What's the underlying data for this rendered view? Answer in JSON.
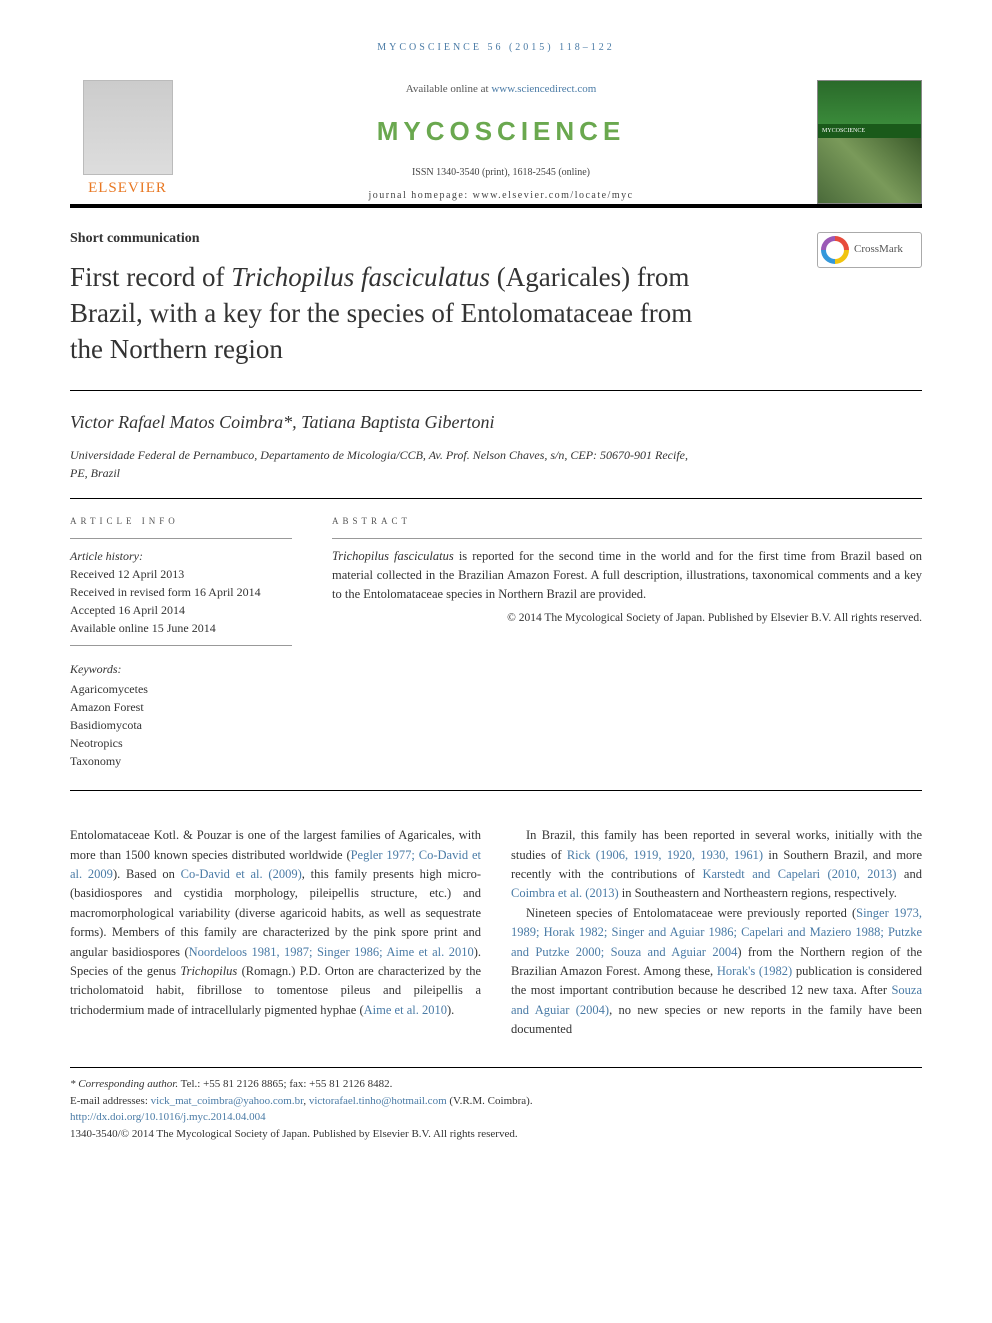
{
  "running_header": "MYCOSCIENCE 56 (2015) 118–122",
  "masthead": {
    "available_prefix": "Available online at ",
    "available_link": "www.sciencedirect.com",
    "journal_logo_text": "MYCOSCIENCE",
    "issn_line": "ISSN 1340-3540 (print), 1618-2545 (online)",
    "homepage_line": "journal homepage: www.elsevier.com/locate/myc",
    "publisher_name": "ELSEVIER",
    "cover_band": "MYCOSCIENCE"
  },
  "section_label": "Short communication",
  "title_pre": "First record of ",
  "title_em": "Trichopilus fasciculatus",
  "title_post": " (Agaricales) from Brazil, with a key for the species of Entolomataceae from the Northern region",
  "crossmark_label": "CrossMark",
  "authors_line": "Victor Rafael Matos Coimbra*, Tatiana Baptista Gibertoni",
  "affiliation": "Universidade Federal de Pernambuco, Departamento de Micologia/CCB, Av. Prof. Nelson Chaves, s/n, CEP: 50670-901 Recife, PE, Brazil",
  "article_info_heading": "ARTICLE INFO",
  "abstract_heading": "ABSTRACT",
  "history": {
    "label": "Article history:",
    "received": "Received 12 April 2013",
    "revised": "Received in revised form 16 April 2014",
    "accepted": "Accepted 16 April 2014",
    "online": "Available online 15 June 2014"
  },
  "keywords": {
    "label": "Keywords:",
    "items": [
      "Agaricomycetes",
      "Amazon Forest",
      "Basidiomycota",
      "Neotropics",
      "Taxonomy"
    ]
  },
  "abstract_em": "Trichopilus fasciculatus",
  "abstract_rest": " is reported for the second time in the world and for the first time from Brazil based on material collected in the Brazilian Amazon Forest. A full description, illustrations, taxonomical comments and a key to the Entolomataceae species in Northern Brazil are provided.",
  "abstract_copyright": "© 2014 The Mycological Society of Japan. Published by Elsevier B.V. All rights reserved.",
  "body": {
    "p1a": "Entolomataceae Kotl. & Pouzar is one of the largest families of Agaricales, with more than 1500 known species distributed worldwide (",
    "p1c1": "Pegler 1977; Co-David et al. 2009",
    "p1b": "). Based on ",
    "p1c2": "Co-David et al. (2009)",
    "p1c": ", this family presents high micro- (basidiospores and cystidia morphology, pileipellis structure, etc.) and macromorphological variability (diverse agaricoid habits, as well as sequestrate forms). Members of this family are characterized by the pink spore print and angular basidiospores (",
    "p1c3": "Noordeloos 1981, 1987; Singer 1986; Aime et al. 2010",
    "p1d": "). Species of the genus ",
    "p1em": "Trichopilus",
    "p1e": " (Romagn.) P.D. Orton are characterized by the tricholomatoid habit, fibrillose to tomentose pileus and pileipellis a trichodermium made of intracellularly pigmented hyphae (",
    "p1c4": "Aime et al. 2010",
    "p1f": ").",
    "p2a": "In Brazil, this family has been reported in several works, initially with the studies of ",
    "p2c1": "Rick (1906, 1919, 1920, 1930, 1961)",
    "p2b": " in Southern Brazil, and more recently with the contributions of ",
    "p2c2": "Karstedt and Capelari (2010, 2013)",
    "p2c": " and ",
    "p2c3": "Coimbra et al. (2013)",
    "p2d": " in Southeastern and Northeastern regions, respectively.",
    "p3a": "Nineteen species of Entolomataceae were previously reported (",
    "p3c1": "Singer 1973, 1989; Horak 1982; Singer and Aguiar 1986; Capelari and Maziero 1988; Putzke and Putzke 2000; Souza and Aguiar 2004",
    "p3b": ") from the Northern region of the Brazilian Amazon Forest. Among these, ",
    "p3c2": "Horak's (1982)",
    "p3c": " publication is considered the most important contribution because he described 12 new taxa. After ",
    "p3c3": "Souza and Aguiar (2004)",
    "p3d": ", no new species or new reports in the family have been documented"
  },
  "footer": {
    "corr_label": "* Corresponding author.",
    "corr_contact": " Tel.: +55 81 2126 8865; fax: +55 81 2126 8482.",
    "email_label": "E-mail addresses: ",
    "email1": "vick_mat_coimbra@yahoo.com.br",
    "email_sep": ", ",
    "email2": "victorafael.tinho@hotmail.com",
    "email_suffix": " (V.R.M. Coimbra).",
    "doi": "http://dx.doi.org/10.1016/j.myc.2014.04.004",
    "copyright": "1340-3540/© 2014 The Mycological Society of Japan. Published by Elsevier B.V. All rights reserved."
  },
  "colors": {
    "link": "#4a7ba6",
    "accent_orange": "#e87722",
    "journal_green": "#6aa84f",
    "rule": "#000000"
  }
}
